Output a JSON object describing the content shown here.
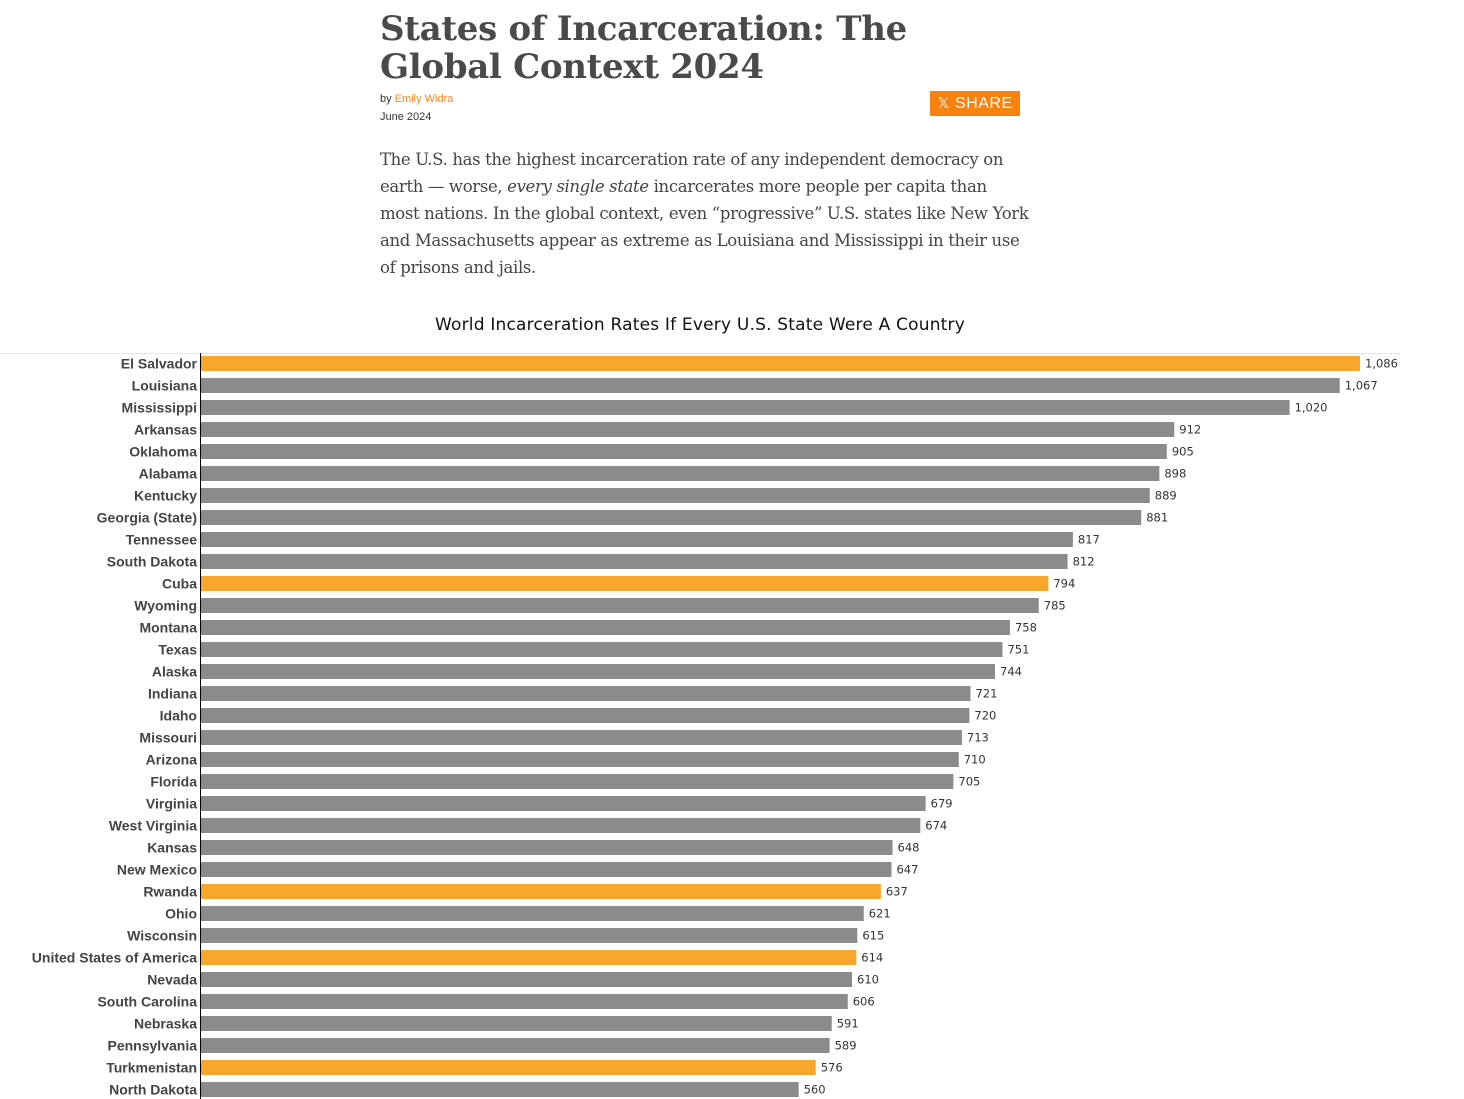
{
  "article": {
    "title": "States of Incarceration: The Global Context 2024",
    "byline_prefix": "by",
    "author": "Emily Widra",
    "date": "June 2024",
    "share_label": "SHARE",
    "share_icon": "x-logo-icon",
    "intro_part1": "The U.S. has the highest incarceration rate of any independent democracy on earth — worse, ",
    "intro_emphasis": "every single state",
    "intro_part2": " incarcerates more people per capita than most nations. In the global context, even “progressive” U.S. states like New York and Massachusetts appear as extreme as Louisiana and Mississippi in their use of prisons and jails."
  },
  "colors": {
    "country_bar": "#f9a62d",
    "state_bar": "#8b8b8b",
    "accent": "#f7820f"
  },
  "chart_data": {
    "type": "bar",
    "orientation": "horizontal",
    "title": "World Incarceration Rates If Every U.S. State Were A Country",
    "xlabel": "",
    "ylabel": "",
    "xlim": [
      0,
      1086
    ],
    "grid": false,
    "categories": [
      "El Salvador",
      "Louisiana",
      "Mississippi",
      "Arkansas",
      "Oklahoma",
      "Alabama",
      "Kentucky",
      "Georgia (State)",
      "Tennessee",
      "South Dakota",
      "Cuba",
      "Wyoming",
      "Montana",
      "Texas",
      "Alaska",
      "Indiana",
      "Idaho",
      "Missouri",
      "Arizona",
      "Florida",
      "Virginia",
      "West Virginia",
      "Kansas",
      "New Mexico",
      "Rwanda",
      "Ohio",
      "Wisconsin",
      "United States of America",
      "Nevada",
      "South Carolina",
      "Nebraska",
      "Pennsylvania",
      "Turkmenistan",
      "North Dakota"
    ],
    "values": [
      1086,
      1067,
      1020,
      912,
      905,
      898,
      889,
      881,
      817,
      812,
      794,
      785,
      758,
      751,
      744,
      721,
      720,
      713,
      710,
      705,
      679,
      674,
      648,
      647,
      637,
      621,
      615,
      614,
      610,
      606,
      591,
      589,
      576,
      560
    ],
    "value_labels": [
      "1,086",
      "1,067",
      "1,020",
      "912",
      "905",
      "898",
      "889",
      "881",
      "817",
      "812",
      "794",
      "785",
      "758",
      "751",
      "744",
      "721",
      "720",
      "713",
      "710",
      "705",
      "679",
      "674",
      "648",
      "647",
      "637",
      "621",
      "615",
      "614",
      "610",
      "606",
      "591",
      "589",
      "576",
      "560"
    ],
    "kinds": [
      "country",
      "state",
      "state",
      "state",
      "state",
      "state",
      "state",
      "state",
      "state",
      "state",
      "country",
      "state",
      "state",
      "state",
      "state",
      "state",
      "state",
      "state",
      "state",
      "state",
      "state",
      "state",
      "state",
      "state",
      "country",
      "state",
      "state",
      "country",
      "state",
      "state",
      "state",
      "state",
      "country",
      "state"
    ]
  }
}
